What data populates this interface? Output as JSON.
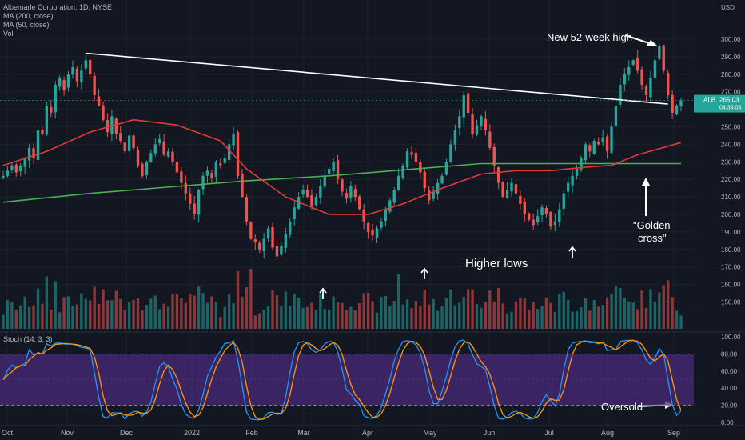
{
  "legend": {
    "symbol": "Albemarle Corporation, 1D, NYSE",
    "ma200": "MA (200, close)",
    "ma50": "MA (50, close)",
    "vol": "Vol"
  },
  "stoch_legend": "Stoch (14, 3, 3)",
  "price_axis": {
    "currency": "USD",
    "ticks": [
      "300.00",
      "290.00",
      "280.00",
      "270.00",
      "260.00",
      "250.00",
      "240.00",
      "230.00",
      "220.00",
      "210.00",
      "200.00",
      "190.00",
      "180.00",
      "170.00",
      "160.00",
      "150.00"
    ],
    "last_label": "ALB",
    "last_price": "265.03",
    "countdown": "04:39:03"
  },
  "stoch_axis": {
    "ticks": [
      "100.00",
      "80.00",
      "60.00",
      "40.00",
      "20.00",
      "0.00"
    ]
  },
  "time_axis": [
    "Oct",
    "Nov",
    "Dec",
    "2022",
    "Feb",
    "Mar",
    "Apr",
    "May",
    "Jun",
    "Jul",
    "Aug",
    "Sep"
  ],
  "annotations": {
    "high": "New 52-week high",
    "higher_lows": "Higher lows",
    "golden1": "\"Golden",
    "golden2": "cross\"",
    "oversold": "Oversold"
  },
  "colors": {
    "bg": "#131722",
    "up": "#26a69a",
    "down": "#ef5350",
    "ma200": "#4caf50",
    "ma50": "#e53935",
    "stoch_k": "#2196f3",
    "stoch_d": "#ff9800",
    "stoch_band": "#4a2a7a",
    "grid": "#1e222d"
  },
  "chart_data": {
    "type": "line",
    "title": "Albemarle Corporation, 1D, NYSE",
    "price_range": [
      145,
      305
    ],
    "stoch_range": [
      0,
      100
    ],
    "close_path": [
      [
        0,
        222
      ],
      [
        2,
        228
      ],
      [
        3,
        224
      ],
      [
        5,
        232
      ],
      [
        6,
        238
      ],
      [
        7,
        232
      ],
      [
        8,
        248
      ],
      [
        9,
        246
      ],
      [
        10,
        262
      ],
      [
        11,
        258
      ],
      [
        12,
        274
      ],
      [
        13,
        278
      ],
      [
        14,
        271
      ],
      [
        15,
        280
      ],
      [
        16,
        284
      ],
      [
        17,
        276
      ],
      [
        18,
        282
      ],
      [
        19,
        288
      ],
      [
        20,
        280
      ],
      [
        21,
        268
      ],
      [
        22,
        262
      ],
      [
        23,
        254
      ],
      [
        24,
        247
      ],
      [
        25,
        256
      ],
      [
        26,
        246
      ],
      [
        27,
        242
      ],
      [
        28,
        236
      ],
      [
        29,
        245
      ],
      [
        30,
        238
      ],
      [
        31,
        228
      ],
      [
        32,
        222
      ],
      [
        33,
        230
      ],
      [
        34,
        235
      ],
      [
        35,
        240
      ],
      [
        36,
        243
      ],
      [
        37,
        234
      ],
      [
        38,
        236
      ],
      [
        39,
        230
      ],
      [
        40,
        224
      ],
      [
        41,
        218
      ],
      [
        42,
        212
      ],
      [
        43,
        206
      ],
      [
        44,
        200
      ],
      [
        45,
        214
      ],
      [
        46,
        222
      ],
      [
        47,
        225
      ],
      [
        48,
        221
      ],
      [
        49,
        230
      ],
      [
        50,
        228
      ],
      [
        51,
        232
      ],
      [
        52,
        240
      ],
      [
        53,
        246
      ],
      [
        54,
        222
      ],
      [
        55,
        210
      ],
      [
        56,
        196
      ],
      [
        57,
        186
      ],
      [
        58,
        184
      ],
      [
        59,
        180
      ],
      [
        60,
        186
      ],
      [
        61,
        192
      ],
      [
        62,
        181
      ],
      [
        63,
        176
      ],
      [
        64,
        182
      ],
      [
        65,
        189
      ],
      [
        66,
        196
      ],
      [
        67,
        204
      ],
      [
        68,
        210
      ],
      [
        69,
        214
      ],
      [
        70,
        210
      ],
      [
        71,
        205
      ],
      [
        72,
        210
      ],
      [
        73,
        216
      ],
      [
        74,
        222
      ],
      [
        75,
        226
      ],
      [
        76,
        230
      ],
      [
        77,
        220
      ],
      [
        78,
        213
      ],
      [
        79,
        209
      ],
      [
        80,
        216
      ],
      [
        81,
        210
      ],
      [
        82,
        203
      ],
      [
        83,
        196
      ],
      [
        84,
        190
      ],
      [
        85,
        188
      ],
      [
        86,
        192
      ],
      [
        87,
        196
      ],
      [
        88,
        203
      ],
      [
        89,
        208
      ],
      [
        90,
        214
      ],
      [
        91,
        222
      ],
      [
        92,
        228
      ],
      [
        93,
        236
      ],
      [
        94,
        234
      ],
      [
        95,
        230
      ],
      [
        96,
        224
      ],
      [
        97,
        215
      ],
      [
        98,
        208
      ],
      [
        99,
        213
      ],
      [
        100,
        218
      ],
      [
        101,
        222
      ],
      [
        102,
        230
      ],
      [
        103,
        240
      ],
      [
        104,
        248
      ],
      [
        105,
        256
      ],
      [
        106,
        268
      ],
      [
        107,
        258
      ],
      [
        108,
        246
      ],
      [
        109,
        251
      ],
      [
        110,
        256
      ],
      [
        111,
        248
      ],
      [
        112,
        238
      ],
      [
        113,
        228
      ],
      [
        114,
        218
      ],
      [
        115,
        210
      ],
      [
        116,
        214
      ],
      [
        117,
        218
      ],
      [
        118,
        212
      ],
      [
        119,
        206
      ],
      [
        120,
        200
      ],
      [
        121,
        197
      ],
      [
        122,
        194
      ],
      [
        123,
        199
      ],
      [
        124,
        204
      ],
      [
        125,
        200
      ],
      [
        126,
        193
      ],
      [
        127,
        196
      ],
      [
        128,
        203
      ],
      [
        129,
        212
      ],
      [
        130,
        218
      ],
      [
        131,
        222
      ],
      [
        132,
        226
      ],
      [
        133,
        232
      ],
      [
        134,
        240
      ],
      [
        135,
        236
      ],
      [
        136,
        242
      ],
      [
        137,
        240
      ],
      [
        138,
        244
      ],
      [
        139,
        236
      ],
      [
        140,
        250
      ],
      [
        141,
        262
      ],
      [
        142,
        274
      ],
      [
        143,
        280
      ],
      [
        144,
        284
      ],
      [
        145,
        288
      ],
      [
        146,
        282
      ],
      [
        147,
        274
      ],
      [
        148,
        268
      ],
      [
        149,
        278
      ],
      [
        150,
        288
      ],
      [
        151,
        296
      ],
      [
        152,
        282
      ],
      [
        153,
        268
      ],
      [
        154,
        258
      ],
      [
        155,
        262
      ],
      [
        156,
        265
      ]
    ],
    "ma200": [
      [
        0,
        207
      ],
      [
        20,
        212
      ],
      [
        40,
        216
      ],
      [
        55,
        219
      ],
      [
        75,
        222
      ],
      [
        95,
        226
      ],
      [
        110,
        229
      ],
      [
        125,
        229
      ],
      [
        140,
        229
      ],
      [
        156,
        229
      ]
    ],
    "ma50": [
      [
        0,
        228
      ],
      [
        10,
        236
      ],
      [
        20,
        247
      ],
      [
        30,
        254
      ],
      [
        40,
        251
      ],
      [
        50,
        242
      ],
      [
        56,
        226
      ],
      [
        65,
        210
      ],
      [
        75,
        200
      ],
      [
        84,
        200
      ],
      [
        92,
        206
      ],
      [
        100,
        214
      ],
      [
        110,
        223
      ],
      [
        118,
        225
      ],
      [
        126,
        225
      ],
      [
        134,
        227
      ],
      [
        140,
        228
      ],
      [
        146,
        234
      ],
      [
        156,
        241
      ]
    ],
    "higher_low_points": [
      [
        63,
        174
      ],
      [
        86,
        188
      ],
      [
        126,
        192
      ]
    ],
    "resistance_line": [
      [
        19,
        292
      ],
      [
        153,
        263
      ]
    ]
  }
}
